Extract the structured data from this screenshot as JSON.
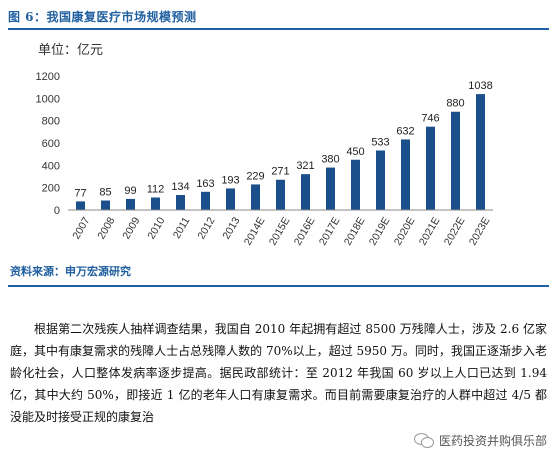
{
  "figure": {
    "title": "图 6：我国康复医疗市场规模预测",
    "source": "资料来源：申万宏源研究"
  },
  "chart_data": {
    "type": "bar",
    "unit_label": "单位：亿元",
    "categories": [
      "2007",
      "2008",
      "2009",
      "2010",
      "2011",
      "2012",
      "2013",
      "2014E",
      "2015E",
      "2016E",
      "2017E",
      "2018E",
      "2019E",
      "2020E",
      "2021E",
      "2022E",
      "2023E"
    ],
    "values": [
      77,
      85,
      99,
      112,
      134,
      163,
      193,
      229,
      271,
      321,
      380,
      450,
      533,
      632,
      746,
      880,
      1038
    ],
    "ylim": [
      0,
      1200
    ],
    "yticks": [
      0,
      200,
      400,
      600,
      800,
      1000,
      1200
    ],
    "bar_color": "#1a4f8c",
    "grid": false,
    "legend": "none",
    "data_labels": true
  },
  "body": {
    "paragraph": "根据第二次残疾人抽样调查结果，我国自 2010 年起拥有超过 8500 万残障人士，涉及 2.6 亿家庭，其中有康复需求的残障人士占总残障人数的 70%以上，超过 5950 万。同时，我国正逐渐步入老龄化社会，人口整体发病率逐步提高。据民政部统计：至 2012 年我国 60 岁以上人口已达到 1.94 亿，其中大约 50%，即接近 1 亿的老年人口有康复需求。而目前需要康复治疗的人群中超过 4/5 都没能及时接受正规的康复治"
  },
  "watermark": {
    "text": "医药投资并购俱乐部",
    "icon": "wechat-icon"
  }
}
